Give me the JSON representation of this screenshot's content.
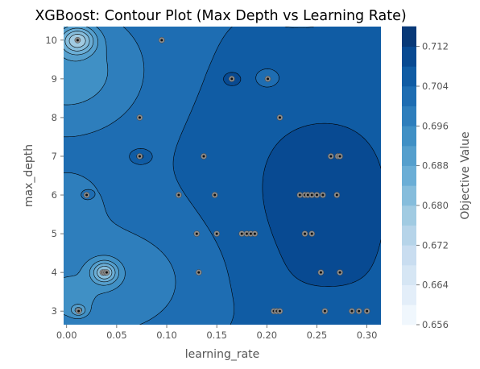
{
  "chart_data": {
    "type": "contour",
    "title": "XGBoost: Contour Plot (Max Depth vs Learning Rate)",
    "xlabel": "learning_rate",
    "ylabel": "max_depth",
    "xlim": [
      -0.003,
      0.314
    ],
    "ylim": [
      2.65,
      10.35
    ],
    "xticks": [
      0.0,
      0.05,
      0.1,
      0.15,
      0.2,
      0.25,
      0.3
    ],
    "xtick_labels": [
      "0.00",
      "0.05",
      "0.10",
      "0.15",
      "0.20",
      "0.25",
      "0.30"
    ],
    "yticks": [
      3,
      4,
      5,
      6,
      7,
      8,
      9,
      10
    ],
    "ytick_labels": [
      "3",
      "4",
      "5",
      "6",
      "7",
      "8",
      "9",
      "10"
    ],
    "colorbar": {
      "label": "Objective Value",
      "range": [
        0.656,
        0.716
      ],
      "ticks": [
        0.656,
        0.664,
        0.672,
        0.68,
        0.688,
        0.696,
        0.704,
        0.712
      ],
      "tick_labels": [
        "0.656",
        "0.664",
        "0.672",
        "0.680",
        "0.688",
        "0.696",
        "0.704",
        "0.712"
      ],
      "levels": [
        0.656,
        0.66,
        0.664,
        0.668,
        0.672,
        0.676,
        0.68,
        0.684,
        0.688,
        0.692,
        0.696,
        0.7,
        0.704,
        0.708,
        0.712,
        0.716
      ],
      "colormap": "Blues"
    },
    "field_model": {
      "base": 0.7035,
      "features": [
        {
          "x": 0.255,
          "y": 6.0,
          "sx": 0.075,
          "sy": 3.6,
          "a": 0.0065
        },
        {
          "x": 0.25,
          "y": 9.8,
          "sx": 0.06,
          "sy": 1.5,
          "a": -0.0028
        },
        {
          "x": 0.26,
          "y": 2.9,
          "sx": 0.05,
          "sy": 0.45,
          "a": -0.002
        },
        {
          "x": 0.0,
          "y": 9.2,
          "sx": 0.055,
          "sy": 1.15,
          "a": -0.01
        },
        {
          "x": 0.0,
          "y": 6.0,
          "sx": 0.03,
          "sy": 0.55,
          "a": -0.004
        },
        {
          "x": 0.02,
          "y": 3.8,
          "sx": 0.09,
          "sy": 1.2,
          "a": -0.007
        },
        {
          "x": 0.0,
          "y": 3.2,
          "sx": 0.02,
          "sy": 0.4,
          "a": -0.003
        },
        {
          "x": 0.011,
          "y": 10.0,
          "sx": 0.012,
          "sy": 0.25,
          "a": -0.02
        },
        {
          "x": 0.038,
          "y": 4.0,
          "sx": 0.009,
          "sy": 0.2,
          "a": -0.018
        },
        {
          "x": 0.012,
          "y": 3.02,
          "sx": 0.005,
          "sy": 0.1,
          "a": -0.01
        },
        {
          "x": 0.165,
          "y": 9.0,
          "sx": 0.007,
          "sy": 0.14,
          "a": 0.007
        },
        {
          "x": 0.201,
          "y": 9.0,
          "sx": 0.007,
          "sy": 0.14,
          "a": -0.005
        },
        {
          "x": 0.073,
          "y": 7.0,
          "sx": 0.006,
          "sy": 0.11,
          "a": 0.006
        },
        {
          "x": 0.095,
          "y": 10.0,
          "sx": 0.006,
          "sy": 0.1,
          "a": 0.002
        },
        {
          "x": 0.02,
          "y": 6.0,
          "sx": 0.004,
          "sy": 0.08,
          "a": 0.004
        }
      ]
    },
    "trial_points": [
      {
        "x": 0.011,
        "y": 10
      },
      {
        "x": 0.095,
        "y": 10
      },
      {
        "x": 0.165,
        "y": 9
      },
      {
        "x": 0.201,
        "y": 9
      },
      {
        "x": 0.073,
        "y": 8
      },
      {
        "x": 0.213,
        "y": 8
      },
      {
        "x": 0.073,
        "y": 7
      },
      {
        "x": 0.137,
        "y": 7
      },
      {
        "x": 0.264,
        "y": 7
      },
      {
        "x": 0.271,
        "y": 7
      },
      {
        "x": 0.273,
        "y": 7
      },
      {
        "x": 0.02,
        "y": 6
      },
      {
        "x": 0.112,
        "y": 6
      },
      {
        "x": 0.148,
        "y": 6
      },
      {
        "x": 0.233,
        "y": 6
      },
      {
        "x": 0.238,
        "y": 6
      },
      {
        "x": 0.241,
        "y": 6
      },
      {
        "x": 0.245,
        "y": 6
      },
      {
        "x": 0.25,
        "y": 6
      },
      {
        "x": 0.256,
        "y": 6
      },
      {
        "x": 0.27,
        "y": 6
      },
      {
        "x": 0.13,
        "y": 5
      },
      {
        "x": 0.15,
        "y": 5
      },
      {
        "x": 0.175,
        "y": 5
      },
      {
        "x": 0.18,
        "y": 5
      },
      {
        "x": 0.184,
        "y": 5
      },
      {
        "x": 0.188,
        "y": 5
      },
      {
        "x": 0.238,
        "y": 5
      },
      {
        "x": 0.245,
        "y": 5
      },
      {
        "x": 0.036,
        "y": 4
      },
      {
        "x": 0.038,
        "y": 4
      },
      {
        "x": 0.04,
        "y": 4
      },
      {
        "x": 0.132,
        "y": 4
      },
      {
        "x": 0.254,
        "y": 4
      },
      {
        "x": 0.273,
        "y": 4
      },
      {
        "x": 0.012,
        "y": 3
      },
      {
        "x": 0.207,
        "y": 3
      },
      {
        "x": 0.21,
        "y": 3
      },
      {
        "x": 0.213,
        "y": 3
      },
      {
        "x": 0.258,
        "y": 3
      },
      {
        "x": 0.285,
        "y": 3
      },
      {
        "x": 0.292,
        "y": 3
      },
      {
        "x": 0.3,
        "y": 3
      }
    ]
  }
}
